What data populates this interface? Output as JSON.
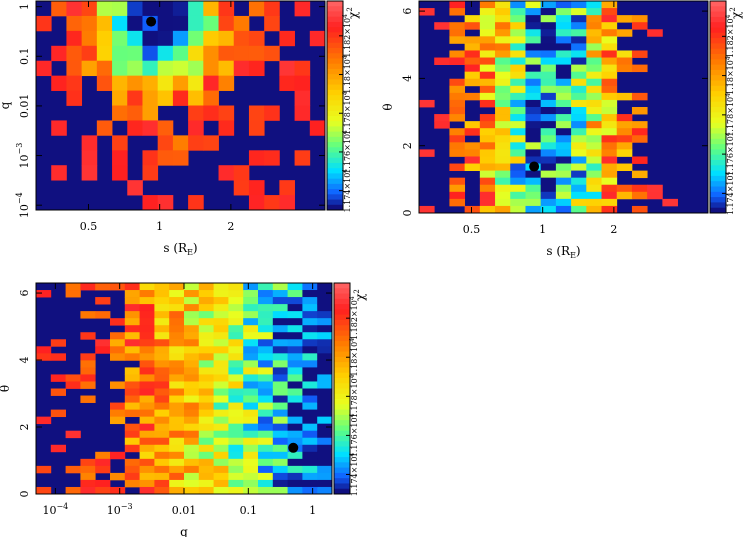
{
  "chart_data": [
    {
      "type": "heatmap",
      "id": "panel-s-q",
      "xlabel": "s (R",
      "xlabel_sub": "E",
      "ylabel": "q",
      "x_scale": "log",
      "y_scale": "log",
      "xlim": [
        0.3,
        5.0
      ],
      "ylim": [
        8e-05,
        1.3
      ],
      "x_ticks": [
        {
          "v": 0.5,
          "label": "0.5"
        },
        {
          "v": 1,
          "label": "1"
        },
        {
          "v": 2,
          "label": "2"
        }
      ],
      "y_ticks": [
        {
          "v": 0.0001,
          "label": "10",
          "sup": "−4"
        },
        {
          "v": 0.001,
          "label": "10",
          "sup": "−3"
        },
        {
          "v": 0.01,
          "label": "0.01"
        },
        {
          "v": 0.1,
          "label": "0.1"
        },
        {
          "v": 1,
          "label": "1"
        }
      ],
      "best_fit": {
        "x": 0.92,
        "y": 0.5
      },
      "colorbar_ticks": [
        "1.174×10",
        "1.176×10",
        "1.178×10",
        "1.18×10",
        "1.182×10"
      ],
      "colorbar_label": "χ",
      "colorbar_sup": "2"
    },
    {
      "type": "heatmap",
      "id": "panel-s-theta",
      "xlabel": "s (R",
      "xlabel_sub": "E",
      "ylabel": "θ",
      "x_scale": "log",
      "y_scale": "linear",
      "xlim": [
        0.3,
        5.0
      ],
      "ylim": [
        0,
        6.3
      ],
      "x_ticks": [
        {
          "v": 0.5,
          "label": "0.5"
        },
        {
          "v": 1,
          "label": "1"
        },
        {
          "v": 2,
          "label": "2"
        }
      ],
      "y_ticks": [
        {
          "v": 0,
          "label": "0"
        },
        {
          "v": 2,
          "label": "2"
        },
        {
          "v": 4,
          "label": "4"
        },
        {
          "v": 6,
          "label": "6"
        }
      ],
      "best_fit": {
        "x": 0.92,
        "y": 1.38
      },
      "colorbar_ticks": [
        "1.174×10",
        "1.176×10",
        "1.178×10",
        "1.18×10",
        "1.182×10"
      ],
      "colorbar_label": "χ",
      "colorbar_sup": "2"
    },
    {
      "type": "heatmap",
      "id": "panel-q-theta",
      "xlabel": "q",
      "ylabel": "θ",
      "x_scale": "log",
      "y_scale": "linear",
      "xlim": [
        5e-05,
        2.0
      ],
      "ylim": [
        0,
        6.3
      ],
      "x_ticks": [
        {
          "v": 0.0001,
          "label": "10",
          "sup": "−4"
        },
        {
          "v": 0.001,
          "label": "10",
          "sup": "−3"
        },
        {
          "v": 0.01,
          "label": "0.01"
        },
        {
          "v": 0.1,
          "label": "0.1"
        },
        {
          "v": 1,
          "label": "1"
        }
      ],
      "y_ticks": [
        {
          "v": 0,
          "label": "0"
        },
        {
          "v": 2,
          "label": "2"
        },
        {
          "v": 4,
          "label": "4"
        },
        {
          "v": 6,
          "label": "6"
        }
      ],
      "best_fit": {
        "x": 0.5,
        "y": 1.38
      },
      "colorbar_ticks": [
        "1.174×10",
        "1.176×10",
        "1.178×10",
        "1.18×10",
        "1.182×10"
      ],
      "colorbar_label": "χ",
      "colorbar_sup": "2"
    }
  ]
}
